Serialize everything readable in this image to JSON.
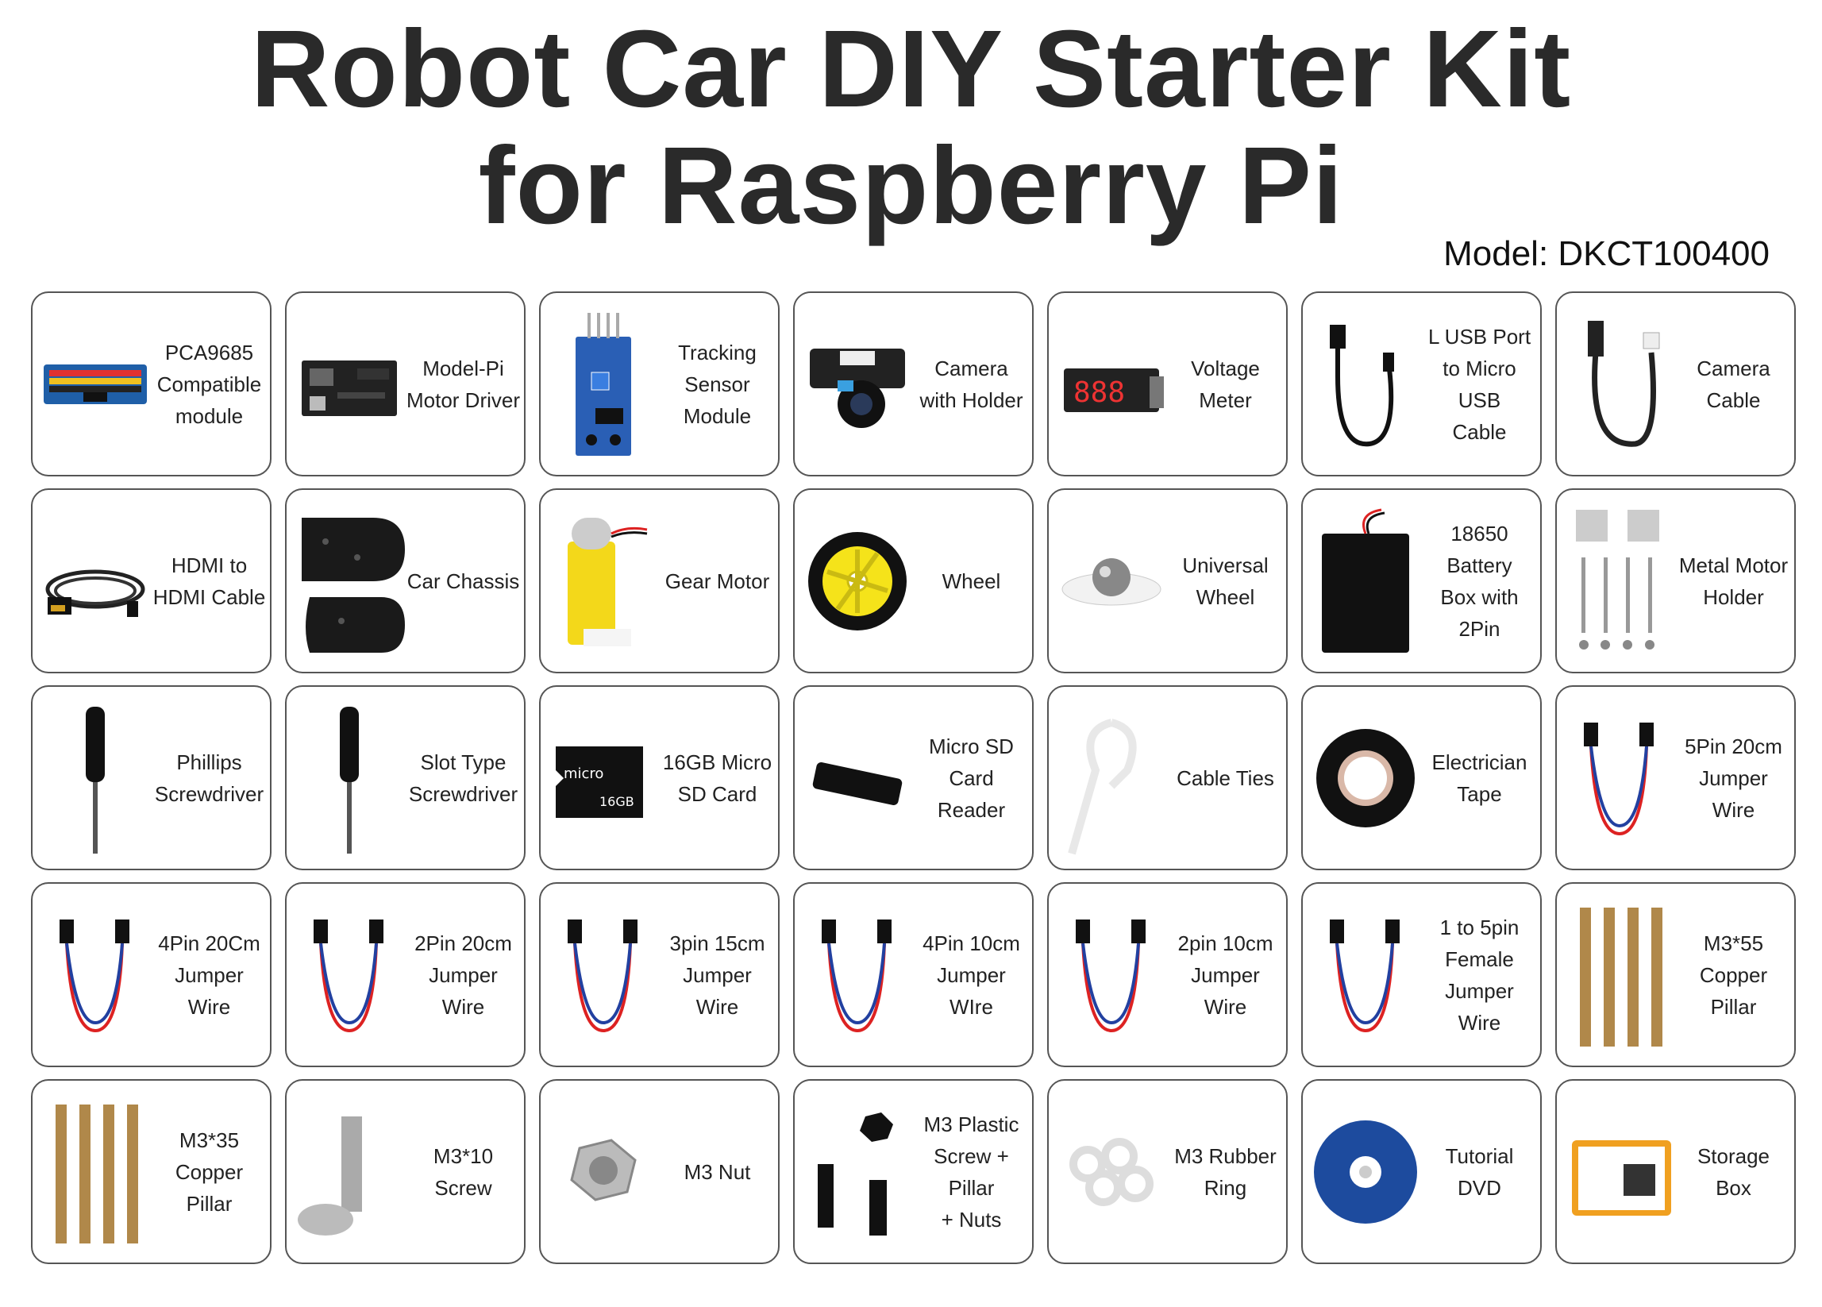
{
  "title_line1": "Robot Car DIY Starter Kit",
  "title_line2": "for Raspberry Pi",
  "model": "Model: DKCT100400",
  "items": [
    {
      "label": "PCA9685\nCompatible\nmodule",
      "icon": "pwm-board-icon"
    },
    {
      "label": "Model-Pi\nMotor Driver",
      "icon": "motor-driver-icon"
    },
    {
      "label": "Tracking\nSensor\nModule",
      "icon": "tracking-sensor-icon"
    },
    {
      "label": "Camera\nwith Holder",
      "icon": "camera-icon"
    },
    {
      "label": "Voltage\nMeter",
      "icon": "voltage-meter-icon"
    },
    {
      "label": "L USB Port\nto Micro USB\nCable",
      "icon": "usb-cable-icon"
    },
    {
      "label": "Camera\nCable",
      "icon": "camera-cable-icon"
    },
    {
      "label": "HDMI to\nHDMI Cable",
      "icon": "hdmi-cable-icon"
    },
    {
      "label": "Car Chassis",
      "icon": "chassis-icon"
    },
    {
      "label": "Gear Motor",
      "icon": "gear-motor-icon"
    },
    {
      "label": "Wheel",
      "icon": "wheel-icon"
    },
    {
      "label": "Universal\nWheel",
      "icon": "universal-wheel-icon"
    },
    {
      "label": "18650 Battery\nBox with 2Pin",
      "icon": "battery-box-icon"
    },
    {
      "label": "Metal Motor\nHolder",
      "icon": "motor-holder-icon"
    },
    {
      "label": "Phillips\nScrewdriver",
      "icon": "screwdriver-icon"
    },
    {
      "label": "Slot Type\nScrewdriver",
      "icon": "screwdriver-icon"
    },
    {
      "label": "16GB Micro\nSD Card",
      "icon": "sd-card-icon"
    },
    {
      "label": "Micro SD\nCard Reader",
      "icon": "card-reader-icon"
    },
    {
      "label": "Cable Ties",
      "icon": "cable-tie-icon"
    },
    {
      "label": "Electrician\nTape",
      "icon": "tape-icon"
    },
    {
      "label": "5Pin 20cm\nJumper Wire",
      "icon": "jumper-wire-icon"
    },
    {
      "label": "4Pin 20Cm\nJumper Wire",
      "icon": "jumper-wire-icon"
    },
    {
      "label": "2Pin 20cm\nJumper Wire",
      "icon": "jumper-wire-icon"
    },
    {
      "label": "3pin 15cm\nJumper Wire",
      "icon": "jumper-wire-icon"
    },
    {
      "label": "4Pin 10cm\nJumper WIre",
      "icon": "jumper-wire-icon"
    },
    {
      "label": "2pin 10cm\nJumper Wire",
      "icon": "jumper-wire-icon"
    },
    {
      "label": "1 to 5pin Female\nJumper Wire",
      "icon": "jumper-wire-icon"
    },
    {
      "label": "M3*55\nCopper Pillar",
      "icon": "copper-pillar-icon"
    },
    {
      "label": "M3*35\nCopper Pillar",
      "icon": "copper-pillar-icon"
    },
    {
      "label": "M3*10 Screw",
      "icon": "screw-icon"
    },
    {
      "label": "M3 Nut",
      "icon": "nut-icon"
    },
    {
      "label": "M3 Plastic\nScrew + Pillar\n+ Nuts",
      "icon": "plastic-screw-icon"
    },
    {
      "label": "M3 Rubber\nRing",
      "icon": "rubber-ring-icon"
    },
    {
      "label": "Tutorial\nDVD",
      "icon": "dvd-icon"
    },
    {
      "label": "Storage\nBox",
      "icon": "storage-box-icon"
    }
  ]
}
